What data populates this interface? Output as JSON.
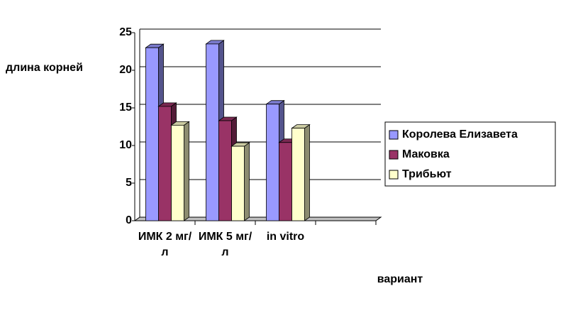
{
  "chart_data": {
    "type": "bar3d",
    "x_label": "вариант",
    "y_label": "длина корней",
    "categories": [
      "ИМК 2 мг/л",
      "ИМК 5 мг/л",
      "in vitro",
      null
    ],
    "series": [
      {
        "name": "Королева Елизавета",
        "color": "#9999ff",
        "values": [
          23,
          23.5,
          15.5,
          null
        ]
      },
      {
        "name": "Маковка",
        "color": "#993366",
        "values": [
          15.2,
          13.3,
          10.4,
          null
        ]
      },
      {
        "name": "Трибьют",
        "color": "#ffffcc",
        "values": [
          12.7,
          9.9,
          12.3,
          null
        ]
      }
    ],
    "ylim": [
      0,
      25
    ],
    "yticks": [
      0,
      5,
      10,
      15,
      20,
      25
    ],
    "grid": true,
    "legend": "right"
  }
}
